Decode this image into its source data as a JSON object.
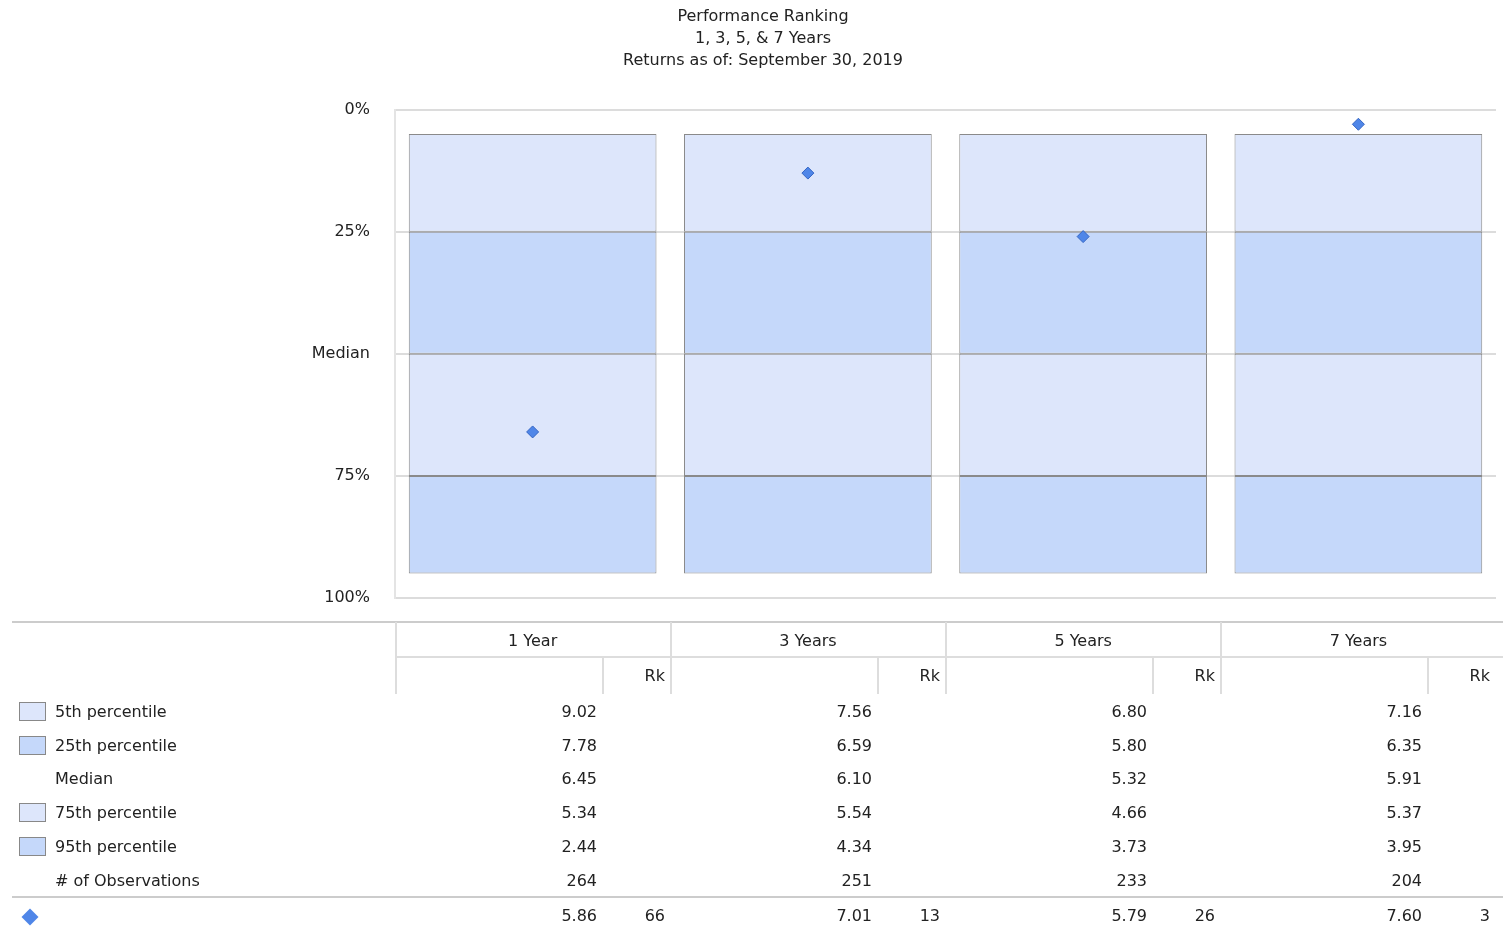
{
  "chart_data": [
    {
      "type": "bar",
      "title": "Performance Ranking",
      "subtitle": "1, 3, 5, & 7 Years",
      "annotations": [
        "Returns as of: September 30, 2019"
      ],
      "categories": [
        "1 Year",
        "3 Years",
        "5 Years",
        "7 Years"
      ],
      "series": [
        {
          "color": "#dde6fb",
          "base": [
            5,
            5,
            5,
            5
          ],
          "values": [
            20,
            20,
            20,
            20
          ]
        },
        {
          "color": "#c5d8fa",
          "base": [
            25,
            25,
            25,
            25
          ],
          "values": [
            25,
            25,
            25,
            25
          ]
        },
        {
          "color": "#dde6fb",
          "base": [
            50,
            50,
            50,
            50
          ],
          "values": [
            25,
            25,
            25,
            25
          ]
        },
        {
          "color": "#c5d8fa",
          "base": [
            75,
            75,
            75,
            75
          ],
          "values": [
            20,
            20,
            20,
            20
          ]
        },
        {
          "type": "scatter",
          "x": [
            "1 Year",
            "3 Years",
            "5 Years",
            "7 Years"
          ],
          "values": [
            66,
            13,
            26,
            3
          ],
          "value_labels": [
            "66",
            "13",
            "26",
            "3"
          ],
          "color": "#4f86e8",
          "marker": "diamond"
        }
      ],
      "ylim": [
        100,
        0
      ],
      "yticks": [
        {
          "value": 0,
          "label": "0%"
        },
        {
          "value": 25,
          "label": "25%"
        },
        {
          "value": 50,
          "label": "Median"
        },
        {
          "value": 75,
          "label": "75%"
        },
        {
          "value": 100,
          "label": "100%"
        }
      ],
      "grid": "y",
      "legend": false
    },
    {
      "type": "other",
      "annotations": [
        "Rk",
        "5th percentile",
        "9.02",
        "7.56",
        "6.80",
        "7.16",
        "25th percentile",
        "7.78",
        "6.59",
        "5.80",
        "6.35",
        "Median",
        "6.45",
        "6.10",
        "5.32",
        "5.91",
        "75th percentile",
        "5.34",
        "5.54",
        "4.66",
        "5.37",
        "95th percentile",
        "2.44",
        "4.34",
        "3.73",
        "3.95",
        "# of Observations",
        "264",
        "251",
        "233",
        "204",
        "5.86",
        "7.01",
        "5.79",
        "7.60"
      ]
    }
  ]
}
